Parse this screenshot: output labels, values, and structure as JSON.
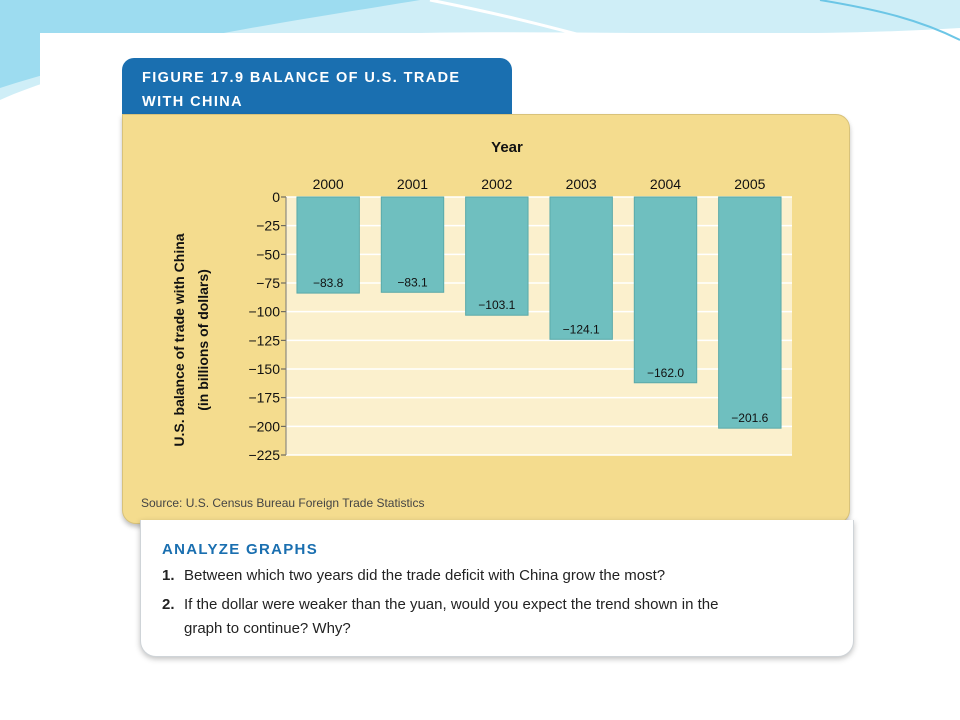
{
  "figure": {
    "title_line1": "FIGURE 17.9  BALANCE OF U.S. TRADE",
    "title_line2": "WITH CHINA",
    "source": "Source: U.S. Census Bureau Foreign Trade Statistics"
  },
  "colors": {
    "tab_blue": "#1a6fb0",
    "panel_yellow": "#f4dc8e",
    "plot_bg": "#fbf0cd",
    "bar_teal": "#6fbfbf",
    "grid": "#ffffff",
    "slide_accent": "#6cc6e6"
  },
  "chart_data": {
    "type": "bar",
    "xlabel": "Year",
    "ylabel": "U.S. balance  of trade with China",
    "ylabel_unit": "(in billions of dollars)",
    "categories": [
      "2000",
      "2001",
      "2002",
      "2003",
      "2004",
      "2005"
    ],
    "values": [
      -83.8,
      -83.1,
      -103.1,
      -124.1,
      -162.0,
      -201.6
    ],
    "value_labels": [
      "−83.8",
      "−83.1",
      "−103.1",
      "−124.1",
      "−162.0",
      "−201.6"
    ],
    "ylim": [
      -225,
      0
    ],
    "yticks": [
      0,
      -25,
      -50,
      -75,
      -100,
      -125,
      -150,
      -175,
      -200,
      -225
    ],
    "ytick_labels": [
      "0",
      "−25",
      "−50",
      "−75",
      "−100",
      "−125",
      "−150",
      "−175",
      "−200",
      "−225"
    ],
    "x_axis_position": "top",
    "grid": true
  },
  "analyze": {
    "heading": "ANALYZE GRAPHS",
    "q1_num": "1.",
    "q1_text": "Between which two years did the trade deficit with China grow the most?",
    "q2_num": "2.",
    "q2_text_line1": "If the dollar were weaker than the yuan, would you expect the trend shown in the",
    "q2_text_line2": "graph to continue? Why?"
  }
}
